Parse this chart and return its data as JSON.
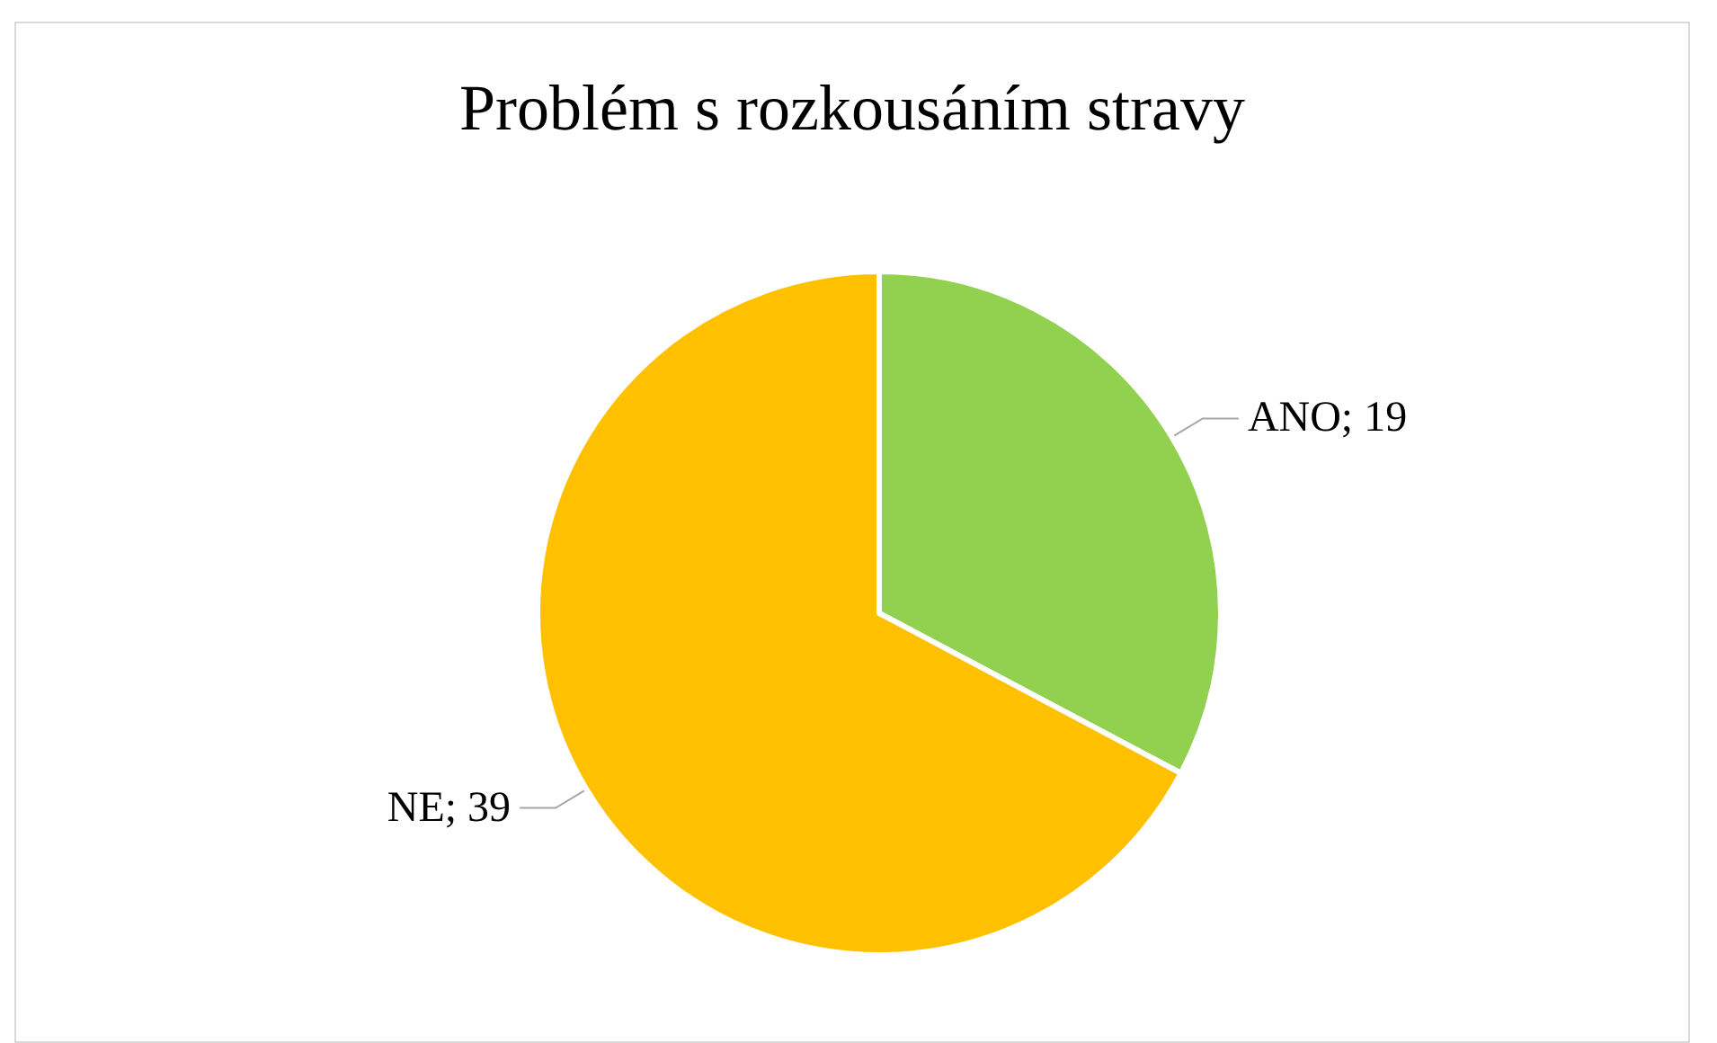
{
  "chart_data": {
    "type": "pie",
    "title": "Problém s rozkousáním stravy",
    "categories": [
      "ANO",
      "NE"
    ],
    "values": [
      19,
      39
    ],
    "value_labels": [
      "; 19",
      "; 39"
    ],
    "colors": [
      "#92d050",
      "#ffc000"
    ],
    "legend": false
  }
}
